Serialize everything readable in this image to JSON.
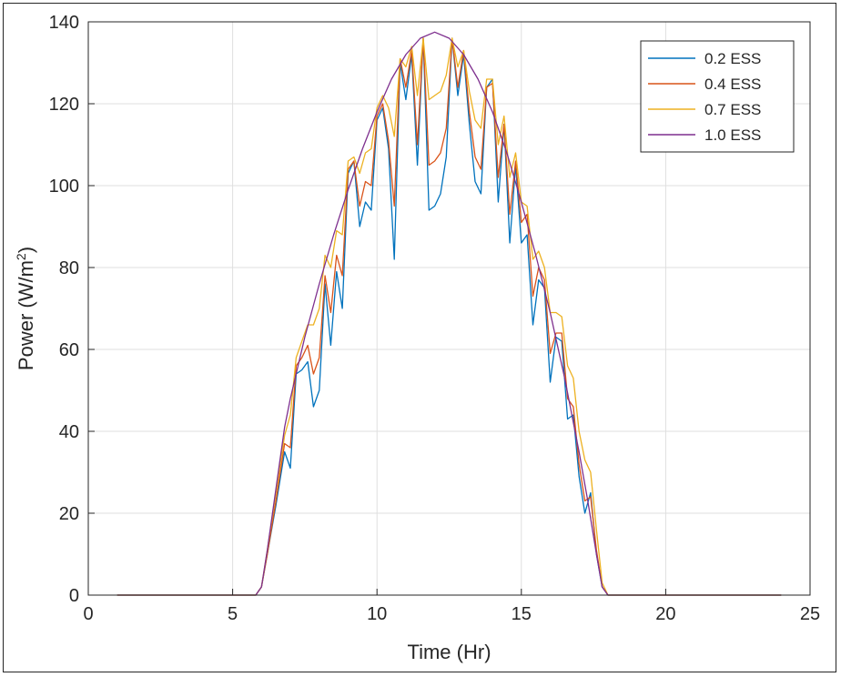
{
  "chart_data": {
    "type": "line",
    "title": "",
    "xlabel": "Time (Hr)",
    "ylabel_main": "Power (W/m",
    "ylabel_sup": "2",
    "ylabel_tail": ")",
    "xlim": [
      0,
      25
    ],
    "ylim": [
      0,
      140
    ],
    "xticks": [
      0,
      5,
      10,
      15,
      20,
      25
    ],
    "yticks": [
      0,
      20,
      40,
      60,
      80,
      100,
      120,
      140
    ],
    "grid": true,
    "legend_position": "top-right",
    "series": [
      {
        "name": "0.2 ESS",
        "color": "#0072BD",
        "x": [
          1,
          5,
          5.8,
          6,
          6.2,
          6.5,
          6.8,
          7,
          7.2,
          7.4,
          7.6,
          7.8,
          8,
          8.2,
          8.4,
          8.6,
          8.8,
          9,
          9.2,
          9.4,
          9.6,
          9.8,
          10,
          10.2,
          10.4,
          10.6,
          10.8,
          11,
          11.2,
          11.4,
          11.6,
          11.8,
          12,
          12.2,
          12.4,
          12.6,
          12.8,
          13,
          13.2,
          13.4,
          13.6,
          13.8,
          14,
          14.2,
          14.4,
          14.6,
          14.8,
          15,
          15.2,
          15.4,
          15.6,
          15.8,
          16,
          16.2,
          16.4,
          16.6,
          16.8,
          17,
          17.2,
          17.4,
          17.6,
          17.8,
          18,
          18.2,
          24
        ],
        "y": [
          0,
          0,
          0,
          2,
          10,
          22,
          35,
          31,
          54,
          55,
          57,
          46,
          50,
          76,
          61,
          79,
          70,
          103,
          106,
          90,
          96,
          94,
          116,
          119,
          109,
          82,
          130,
          121,
          132,
          105,
          136,
          94,
          95,
          98,
          107,
          136,
          122,
          132,
          115,
          101,
          98,
          124,
          126,
          96,
          115,
          86,
          105,
          86,
          88,
          66,
          77,
          75,
          52,
          63,
          62,
          43,
          44,
          29,
          20,
          25,
          10,
          2,
          0,
          0,
          0
        ]
      },
      {
        "name": "0.4 ESS",
        "color": "#D95319",
        "x": [
          1,
          5,
          5.8,
          6,
          6.2,
          6.5,
          6.8,
          7,
          7.2,
          7.4,
          7.6,
          7.8,
          8,
          8.2,
          8.4,
          8.6,
          8.8,
          9,
          9.2,
          9.4,
          9.6,
          9.8,
          10,
          10.2,
          10.4,
          10.6,
          10.8,
          11,
          11.2,
          11.4,
          11.6,
          11.8,
          12,
          12.2,
          12.4,
          12.6,
          12.8,
          13,
          13.2,
          13.4,
          13.6,
          13.8,
          14,
          14.2,
          14.4,
          14.6,
          14.8,
          15,
          15.2,
          15.4,
          15.6,
          15.8,
          16,
          16.2,
          16.4,
          16.6,
          16.8,
          17,
          17.2,
          17.4,
          17.6,
          17.8,
          18,
          18.2,
          24
        ],
        "y": [
          0,
          0,
          0,
          2,
          10,
          23,
          37,
          36,
          56,
          58,
          61,
          54,
          58,
          78,
          69,
          83,
          78,
          104,
          106,
          95,
          101,
          100,
          117,
          120,
          111,
          95,
          131,
          124,
          133,
          110,
          136,
          105,
          106,
          108,
          114,
          136,
          124,
          133,
          118,
          107,
          104,
          124,
          125,
          102,
          115,
          93,
          106,
          91,
          93,
          73,
          80,
          77,
          59,
          64,
          64,
          48,
          46,
          32,
          23,
          24,
          11,
          2,
          0,
          0,
          0
        ]
      },
      {
        "name": "0.7 ESS",
        "color": "#EDB120",
        "x": [
          1,
          5,
          5.8,
          6,
          6.2,
          6.5,
          6.8,
          7,
          7.2,
          7.4,
          7.6,
          7.8,
          8,
          8.2,
          8.4,
          8.6,
          8.8,
          9,
          9.2,
          9.4,
          9.6,
          9.8,
          10,
          10.2,
          10.4,
          10.6,
          10.8,
          11,
          11.2,
          11.4,
          11.6,
          11.8,
          12,
          12.2,
          12.4,
          12.6,
          12.8,
          13,
          13.2,
          13.4,
          13.6,
          13.8,
          14,
          14.2,
          14.4,
          14.6,
          14.8,
          15,
          15.2,
          15.4,
          15.6,
          15.8,
          16,
          16.2,
          16.4,
          16.6,
          16.8,
          17,
          17.2,
          17.4,
          17.6,
          17.8,
          18,
          18.2,
          24
        ],
        "y": [
          0,
          0,
          0,
          2,
          11,
          25,
          39,
          44,
          58,
          62,
          66,
          66,
          70,
          83,
          80,
          89,
          88,
          106,
          107,
          103,
          108,
          109,
          119,
          122,
          119,
          112,
          131,
          129,
          134,
          122,
          136,
          121,
          122,
          123,
          127,
          136,
          129,
          133,
          123,
          116,
          114,
          126,
          126,
          110,
          117,
          102,
          108,
          96,
          95,
          82,
          84,
          80,
          69,
          69,
          68,
          56,
          53,
          40,
          33,
          30,
          16,
          3,
          0,
          0,
          0
        ]
      },
      {
        "name": "1.0 ESS",
        "color": "#7E2F8E",
        "x": [
          1,
          5,
          5.8,
          6,
          6.2,
          6.5,
          6.8,
          7,
          7.5,
          8,
          8.5,
          9,
          9.5,
          10,
          10.5,
          11,
          11.5,
          12,
          12.5,
          13,
          13.5,
          14,
          14.5,
          15,
          15.5,
          16,
          16.5,
          17,
          17.3,
          17.6,
          17.8,
          18,
          18.2,
          24
        ],
        "y": [
          0,
          0,
          0,
          2,
          11,
          26,
          41,
          48,
          63,
          76,
          88,
          99,
          109,
          118,
          126,
          132,
          136,
          137.5,
          136,
          132,
          126,
          118,
          108,
          96,
          83,
          69,
          53,
          35,
          23,
          10,
          2,
          0,
          0,
          0
        ]
      }
    ]
  }
}
